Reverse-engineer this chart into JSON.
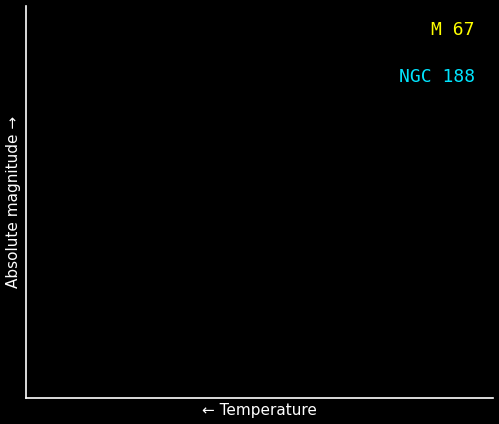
{
  "background_color": "#000000",
  "ylabel": "Absolute magnitude →",
  "xlabel": "← Temperature",
  "label_color": "#ffffff",
  "legend_m67_label": "M 67",
  "legend_ngc188_label": "NGC 188",
  "legend_m67_color": "#ffff00",
  "legend_ngc188_color": "#00e5ff",
  "ylabel_fontsize": 11,
  "xlabel_fontsize": 11,
  "legend_fontsize": 13,
  "fig_width": 4.99,
  "fig_height": 4.24,
  "dpi": 100
}
